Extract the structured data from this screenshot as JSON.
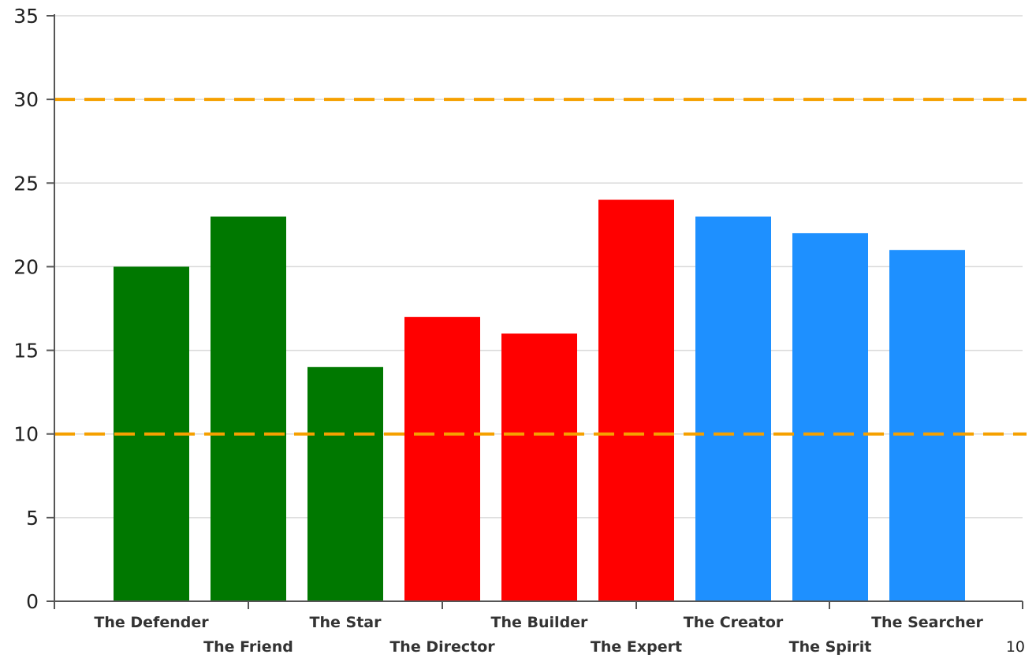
{
  "chart_data": {
    "type": "bar",
    "categories": [
      "The Defender",
      "The Friend",
      "The Star",
      "The Director",
      "The Builder",
      "The Expert",
      "The Creator",
      "The Spirit",
      "The Searcher"
    ],
    "values": [
      20,
      23,
      14,
      17,
      16,
      24,
      23,
      22,
      21
    ],
    "bar_colors": [
      "#007800",
      "#007800",
      "#007800",
      "#ff0000",
      "#ff0000",
      "#ff0000",
      "#1e90ff",
      "#1e90ff",
      "#1e90ff"
    ],
    "ylim": [
      0,
      35
    ],
    "yticks": [
      0,
      5,
      10,
      15,
      20,
      25,
      30,
      35
    ],
    "reference_lines": [
      {
        "value": 30,
        "color": "#f5a000",
        "style": "dashed"
      },
      {
        "value": 10,
        "color": "#f5a000",
        "style": "dashed"
      }
    ],
    "grid": true,
    "corner_label": "10",
    "title": "",
    "xlabel": "",
    "ylabel": ""
  }
}
